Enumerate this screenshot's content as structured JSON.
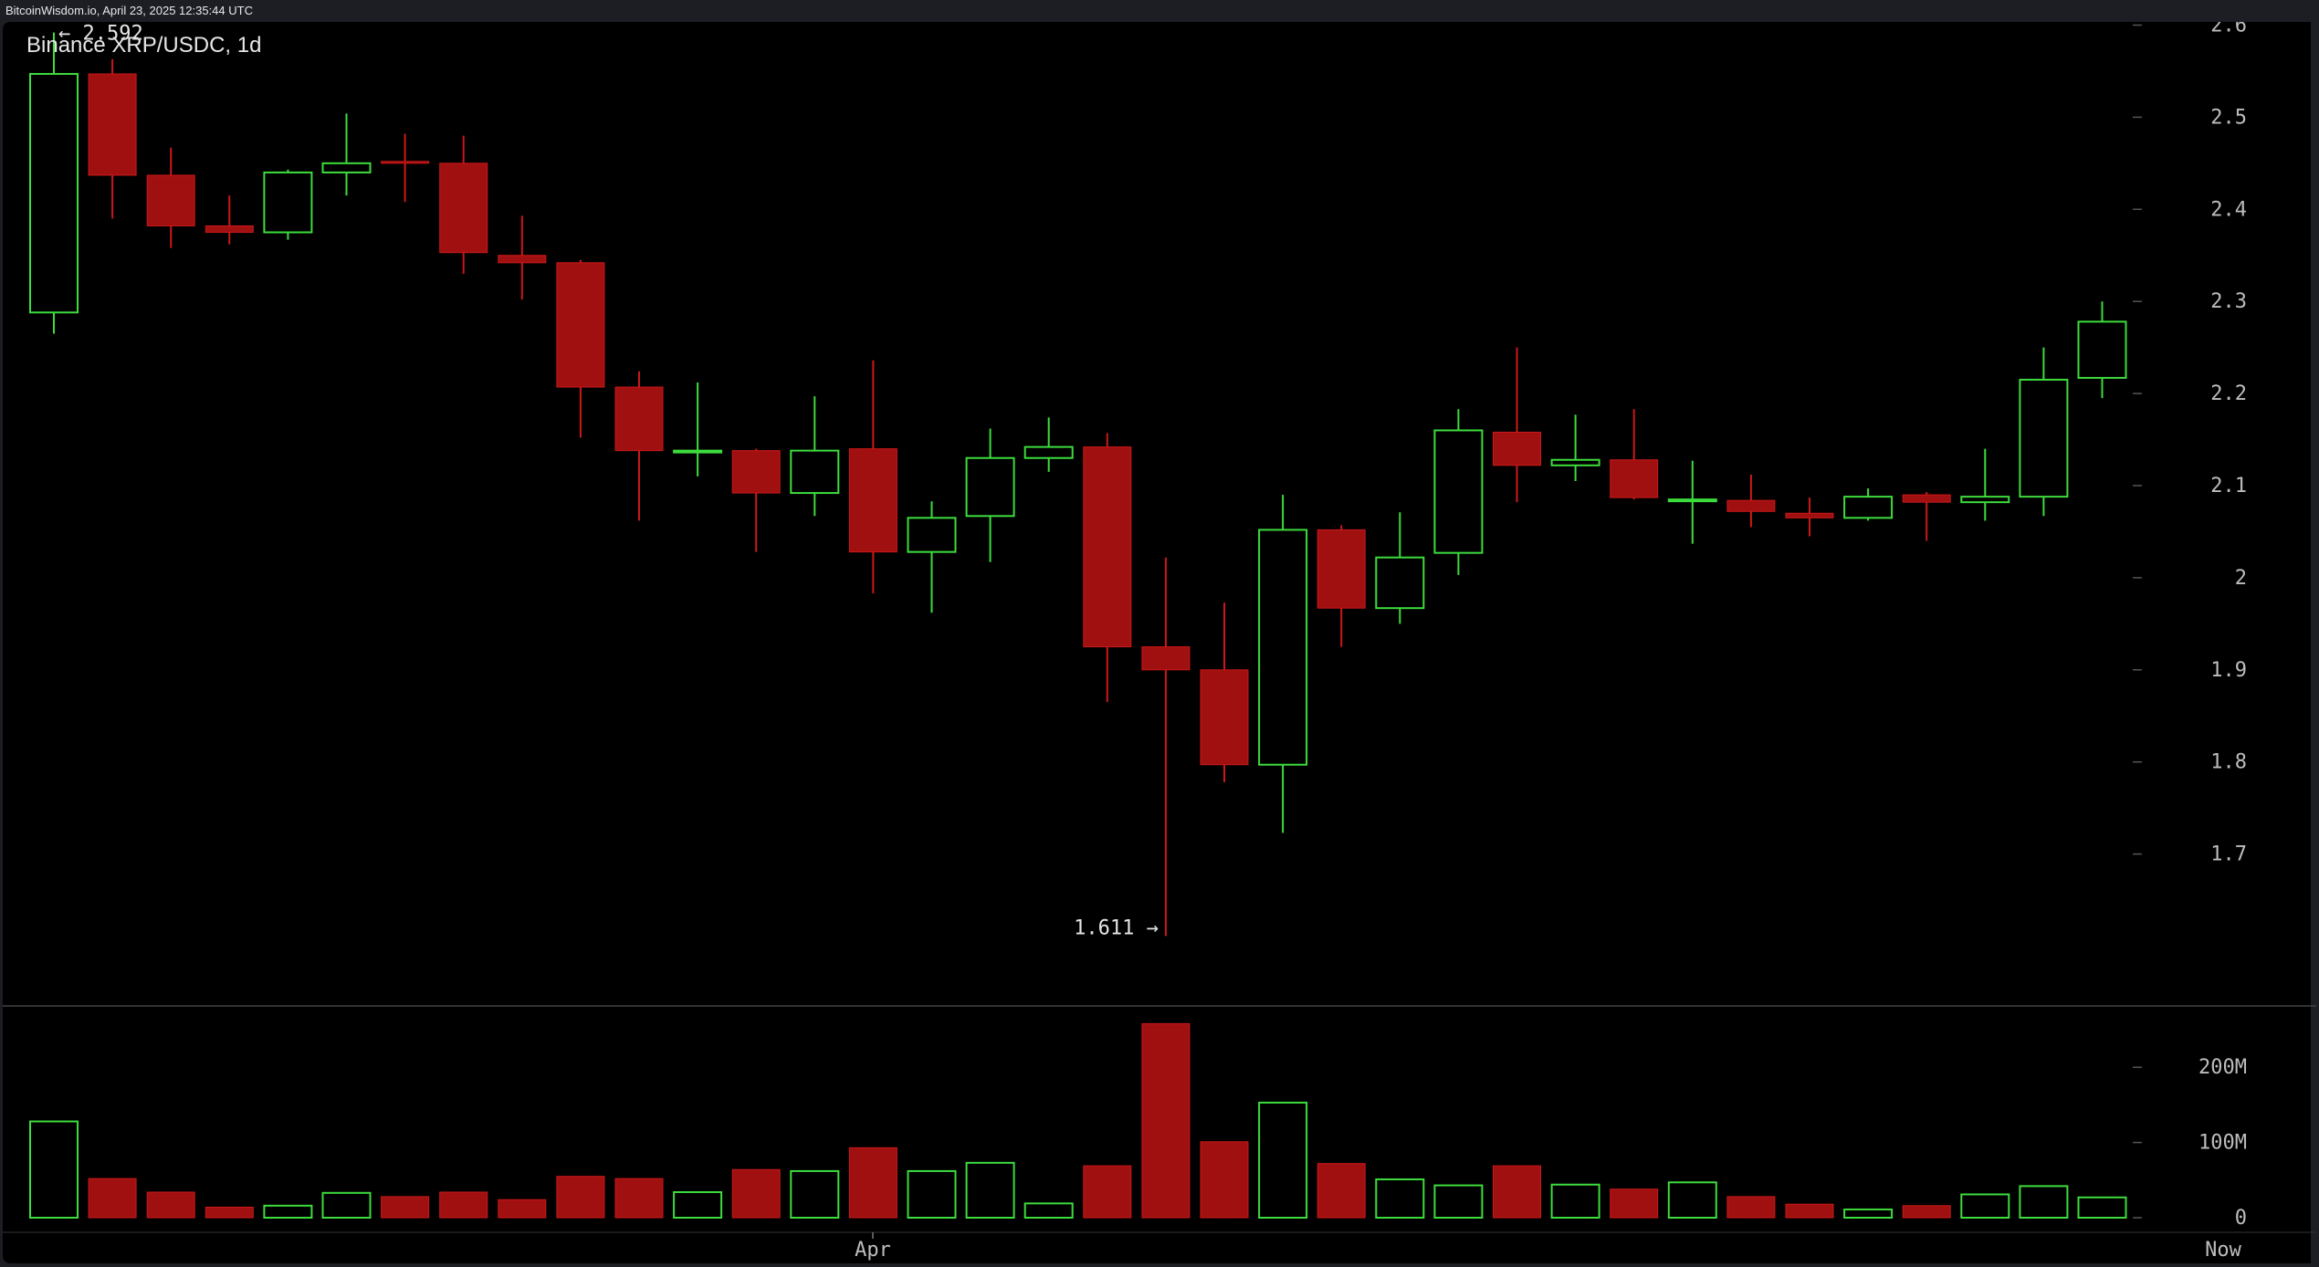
{
  "page": {
    "header_text": "BitcoinWisdom.io, April 23, 2025 12:35:44 UTC"
  },
  "chart_data": {
    "type": "candlestick",
    "title": "Binance XRP/USDC, 1d",
    "colors": {
      "up": "#3ddc3d",
      "down": "#a01010",
      "down_wick": "#cc1818",
      "background": "#000000",
      "text": "#e6e6e6",
      "axis_text": "#bdbdbd"
    },
    "price_axis": {
      "ticks": [
        "2.6",
        "2.5",
        "2.4",
        "2.3",
        "2.2",
        "2.1",
        "2",
        "1.9",
        "1.8",
        "1.7"
      ],
      "range": [
        1.6,
        2.62
      ]
    },
    "volume_axis": {
      "ticks": [
        "200M",
        "100M",
        "0"
      ],
      "range": [
        0,
        280
      ]
    },
    "time_axis": {
      "labels": [
        "Apr",
        "Now"
      ]
    },
    "annotations": {
      "high": "← 2.592",
      "low": "1.611 →"
    },
    "candles": [
      {
        "o": 2.288,
        "h": 2.592,
        "l": 2.265,
        "c": 2.547,
        "v": 128
      },
      {
        "o": 2.547,
        "h": 2.563,
        "l": 2.39,
        "c": 2.437,
        "v": 52
      },
      {
        "o": 2.437,
        "h": 2.467,
        "l": 2.358,
        "c": 2.382,
        "v": 34
      },
      {
        "o": 2.382,
        "h": 2.415,
        "l": 2.362,
        "c": 2.375,
        "v": 14
      },
      {
        "o": 2.375,
        "h": 2.443,
        "l": 2.367,
        "c": 2.44,
        "v": 16
      },
      {
        "o": 2.44,
        "h": 2.504,
        "l": 2.415,
        "c": 2.45,
        "v": 33
      },
      {
        "o": 2.452,
        "h": 2.482,
        "l": 2.408,
        "c": 2.45,
        "v": 28
      },
      {
        "o": 2.45,
        "h": 2.48,
        "l": 2.33,
        "c": 2.353,
        "v": 34
      },
      {
        "o": 2.35,
        "h": 2.393,
        "l": 2.302,
        "c": 2.342,
        "v": 24
      },
      {
        "o": 2.342,
        "h": 2.345,
        "l": 2.152,
        "c": 2.207,
        "v": 55
      },
      {
        "o": 2.207,
        "h": 2.224,
        "l": 2.062,
        "c": 2.138,
        "v": 52
      },
      {
        "o": 2.138,
        "h": 2.212,
        "l": 2.11,
        "c": 2.138,
        "v": 34
      },
      {
        "o": 2.138,
        "h": 2.14,
        "l": 2.028,
        "c": 2.092,
        "v": 64
      },
      {
        "o": 2.092,
        "h": 2.197,
        "l": 2.067,
        "c": 2.138,
        "v": 62
      },
      {
        "o": 2.14,
        "h": 2.236,
        "l": 1.983,
        "c": 2.028,
        "v": 93
      },
      {
        "o": 2.028,
        "h": 2.083,
        "l": 1.962,
        "c": 2.065,
        "v": 62
      },
      {
        "o": 2.067,
        "h": 2.162,
        "l": 2.017,
        "c": 2.13,
        "v": 73
      },
      {
        "o": 2.13,
        "h": 2.174,
        "l": 2.115,
        "c": 2.142,
        "v": 19
      },
      {
        "o": 2.142,
        "h": 2.157,
        "l": 1.865,
        "c": 1.925,
        "v": 69
      },
      {
        "o": 1.925,
        "h": 2.022,
        "l": 1.611,
        "c": 1.9,
        "v": 258
      },
      {
        "o": 1.9,
        "h": 1.973,
        "l": 1.778,
        "c": 1.797,
        "v": 101
      },
      {
        "o": 1.797,
        "h": 2.09,
        "l": 1.723,
        "c": 2.052,
        "v": 153
      },
      {
        "o": 2.052,
        "h": 2.057,
        "l": 1.925,
        "c": 1.967,
        "v": 72
      },
      {
        "o": 1.967,
        "h": 2.071,
        "l": 1.95,
        "c": 2.022,
        "v": 51
      },
      {
        "o": 2.027,
        "h": 2.183,
        "l": 2.003,
        "c": 2.16,
        "v": 43
      },
      {
        "o": 2.158,
        "h": 2.25,
        "l": 2.082,
        "c": 2.122,
        "v": 69
      },
      {
        "o": 2.122,
        "h": 2.177,
        "l": 2.105,
        "c": 2.128,
        "v": 44
      },
      {
        "o": 2.128,
        "h": 2.183,
        "l": 2.085,
        "c": 2.087,
        "v": 38
      },
      {
        "o": 2.085,
        "h": 2.127,
        "l": 2.037,
        "c": 2.085,
        "v": 47
      },
      {
        "o": 2.084,
        "h": 2.112,
        "l": 2.055,
        "c": 2.072,
        "v": 28
      },
      {
        "o": 2.07,
        "h": 2.087,
        "l": 2.045,
        "c": 2.065,
        "v": 18
      },
      {
        "o": 2.065,
        "h": 2.097,
        "l": 2.062,
        "c": 2.088,
        "v": 11
      },
      {
        "o": 2.09,
        "h": 2.093,
        "l": 2.04,
        "c": 2.082,
        "v": 16
      },
      {
        "o": 2.082,
        "h": 2.14,
        "l": 2.062,
        "c": 2.088,
        "v": 31
      },
      {
        "o": 2.088,
        "h": 2.25,
        "l": 2.067,
        "c": 2.215,
        "v": 42
      },
      {
        "o": 2.217,
        "h": 2.3,
        "l": 2.195,
        "c": 2.278,
        "v": 27
      }
    ]
  }
}
